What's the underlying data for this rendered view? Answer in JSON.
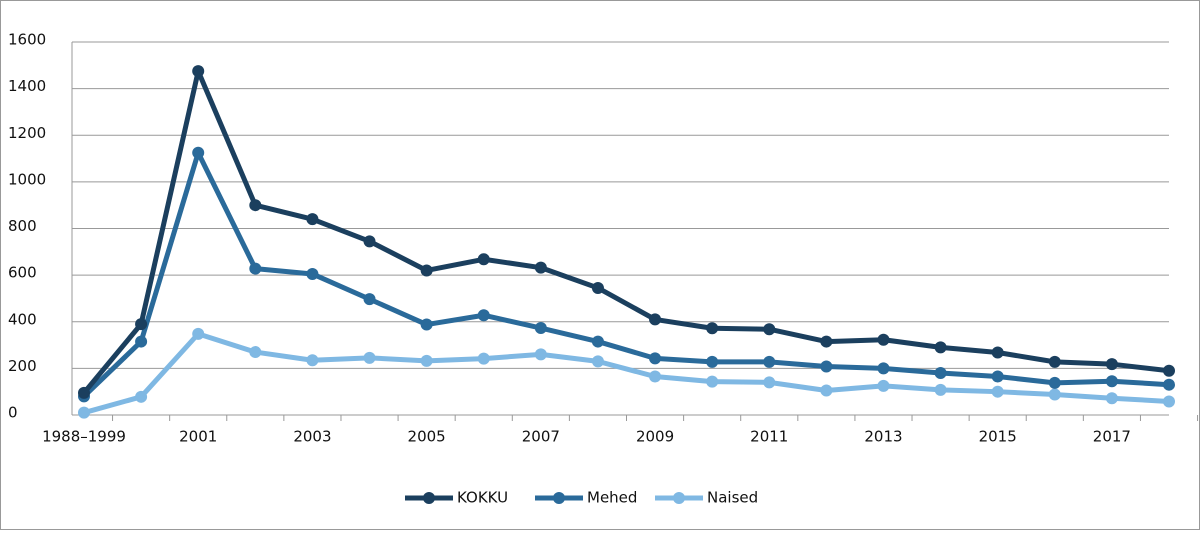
{
  "chart_data": {
    "type": "line",
    "categories": [
      "1988–1999",
      null,
      "2001",
      null,
      "2003",
      null,
      "2005",
      null,
      "2007",
      null,
      "2009",
      null,
      "2011",
      null,
      "2013",
      null,
      "2015",
      null,
      "2017",
      null
    ],
    "series": [
      {
        "name": "KOKKU",
        "color": "#1b3f5e",
        "values": [
          95,
          390,
          1475,
          900,
          840,
          745,
          620,
          668,
          632,
          545,
          410,
          372,
          368,
          315,
          323,
          290,
          268,
          228,
          218,
          190
        ]
      },
      {
        "name": "Mehed",
        "color": "#2a6a9a",
        "values": [
          80,
          315,
          1125,
          628,
          605,
          497,
          388,
          428,
          373,
          315,
          243,
          228,
          228,
          208,
          200,
          180,
          165,
          138,
          145,
          130
        ]
      },
      {
        "name": "Naised",
        "color": "#7fb8e3",
        "values": [
          10,
          78,
          348,
          270,
          235,
          245,
          232,
          242,
          260,
          230,
          165,
          143,
          140,
          105,
          125,
          108,
          100,
          88,
          72,
          58
        ]
      }
    ],
    "ylim": [
      0,
      1600
    ],
    "yticks": [
      0,
      200,
      400,
      600,
      800,
      1000,
      1200,
      1400,
      1600
    ],
    "grid": true,
    "legend": "bottom"
  }
}
